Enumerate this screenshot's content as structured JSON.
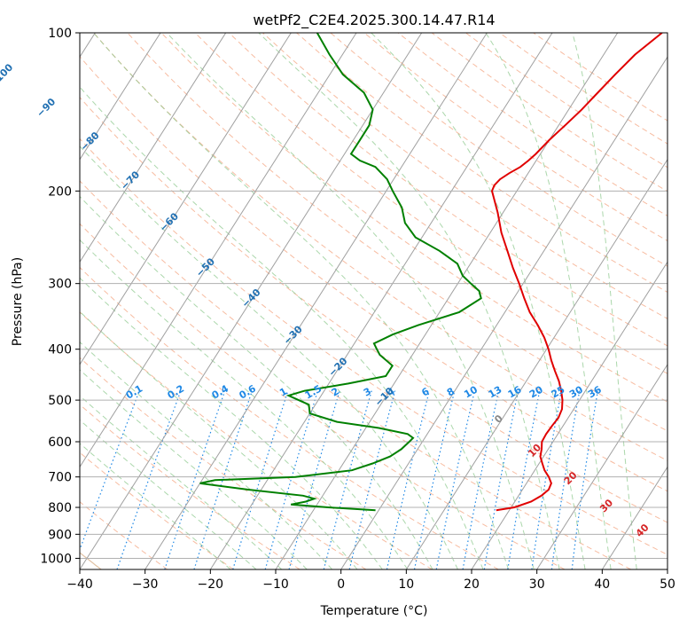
{
  "chart_data": {
    "type": "line",
    "subtype": "skew-t log-p diagram",
    "title": "wetPf2_C2E4.2025.300.14.47.R14",
    "xlabel": "Temperature (°C)",
    "ylabel": "Pressure (hPa)",
    "xlim": [
      -40,
      50
    ],
    "ylim": [
      1050,
      100
    ],
    "y_scale": "log",
    "grid": true,
    "x_ticks": [
      "−40",
      "−30",
      "−20",
      "−10",
      "0",
      "10",
      "20",
      "30",
      "40",
      "50"
    ],
    "y_ticks": [
      "100",
      "200",
      "300",
      "400",
      "500",
      "600",
      "700",
      "800",
      "900",
      "1000"
    ],
    "series": [
      {
        "role": "temperature",
        "color": "#e00000",
        "points": [
          [
            810,
            18.0
          ],
          [
            800,
            20.5
          ],
          [
            780,
            22.5
          ],
          [
            760,
            23.5
          ],
          [
            740,
            24.0
          ],
          [
            720,
            23.8
          ],
          [
            700,
            22.8
          ],
          [
            680,
            21.5
          ],
          [
            660,
            20.5
          ],
          [
            640,
            19.5
          ],
          [
            620,
            19.0
          ],
          [
            600,
            18.3
          ],
          [
            580,
            18.2
          ],
          [
            560,
            18.3
          ],
          [
            540,
            18.5
          ],
          [
            520,
            18.2
          ],
          [
            500,
            17.4
          ],
          [
            480,
            16.3
          ],
          [
            460,
            15.0
          ],
          [
            440,
            13.4
          ],
          [
            420,
            11.8
          ],
          [
            400,
            10.3
          ],
          [
            380,
            8.5
          ],
          [
            360,
            6.3
          ],
          [
            340,
            3.8
          ],
          [
            320,
            1.6
          ],
          [
            300,
            -0.6
          ],
          [
            280,
            -3.1
          ],
          [
            260,
            -5.6
          ],
          [
            240,
            -8.3
          ],
          [
            220,
            -10.8
          ],
          [
            200,
            -13.8
          ],
          [
            195,
            -14.0
          ],
          [
            190,
            -13.7
          ],
          [
            185,
            -12.9
          ],
          [
            180,
            -11.8
          ],
          [
            175,
            -11.2
          ],
          [
            170,
            -10.7
          ],
          [
            160,
            -10.0
          ],
          [
            150,
            -9.0
          ],
          [
            140,
            -8.0
          ],
          [
            130,
            -7.2
          ],
          [
            120,
            -6.3
          ],
          [
            110,
            -5.2
          ],
          [
            100,
            -3.2
          ]
        ]
      },
      {
        "role": "dewpoint",
        "color": "#008000",
        "points": [
          [
            810,
            -0.5
          ],
          [
            800,
            -8.0
          ],
          [
            790,
            -14.0
          ],
          [
            780,
            -12.0
          ],
          [
            770,
            -11.0
          ],
          [
            760,
            -13.0
          ],
          [
            740,
            -22.0
          ],
          [
            720,
            -30.0
          ],
          [
            710,
            -28.0
          ],
          [
            700,
            -16.0
          ],
          [
            680,
            -8.0
          ],
          [
            660,
            -5.5
          ],
          [
            640,
            -3.5
          ],
          [
            620,
            -2.5
          ],
          [
            600,
            -2.0
          ],
          [
            590,
            -1.8
          ],
          [
            580,
            -3.0
          ],
          [
            565,
            -8.0
          ],
          [
            550,
            -15.0
          ],
          [
            530,
            -20.0
          ],
          [
            510,
            -21.0
          ],
          [
            500,
            -23.0
          ],
          [
            490,
            -25.0
          ],
          [
            480,
            -23.0
          ],
          [
            465,
            -17.0
          ],
          [
            450,
            -12.0
          ],
          [
            430,
            -12.0
          ],
          [
            410,
            -15.0
          ],
          [
            400,
            -16.0
          ],
          [
            390,
            -17.0
          ],
          [
            375,
            -15.0
          ],
          [
            360,
            -12.0
          ],
          [
            340,
            -7.0
          ],
          [
            320,
            -5.0
          ],
          [
            310,
            -6.0
          ],
          [
            300,
            -8.0
          ],
          [
            290,
            -10.0
          ],
          [
            275,
            -12.0
          ],
          [
            260,
            -16.0
          ],
          [
            245,
            -21.0
          ],
          [
            230,
            -24.0
          ],
          [
            215,
            -26.0
          ],
          [
            200,
            -29.0
          ],
          [
            190,
            -31.0
          ],
          [
            180,
            -34.0
          ],
          [
            175,
            -37.0
          ],
          [
            170,
            -39.0
          ],
          [
            160,
            -39.0
          ],
          [
            150,
            -39.0
          ],
          [
            140,
            -40.0
          ],
          [
            130,
            -43.0
          ],
          [
            120,
            -48.0
          ],
          [
            110,
            -52.0
          ],
          [
            100,
            -56.0
          ]
        ]
      }
    ],
    "mixing_ratio_labels": [
      "0.1",
      "0.2",
      "0.4",
      "0.6",
      "1",
      "1.5",
      "2",
      "3",
      "4",
      "6",
      "8",
      "10",
      "13",
      "16",
      "20",
      "25",
      "30",
      "36"
    ],
    "mixing_ratio_values": [
      0.1,
      0.2,
      0.4,
      0.6,
      1,
      1.5,
      2,
      3,
      4,
      6,
      8,
      10,
      13,
      16,
      20,
      25,
      30,
      36
    ],
    "isotherm_labels": [
      "−100",
      "−90",
      "−80",
      "−70",
      "−60",
      "−50",
      "−40",
      "−30",
      "−20",
      "−10"
    ],
    "isotherm_label_values": [
      -100,
      -90,
      -80,
      -70,
      -60,
      -50,
      -40,
      -30,
      -20,
      -10
    ],
    "moist_adiabat_labels": [
      "0",
      "10",
      "20",
      "30",
      "40"
    ],
    "moist_adiabat_label_values": [
      0,
      10,
      20,
      30,
      40
    ],
    "colors": {
      "isotherm": "#a0a0a0",
      "isotherm_label": "#2271b3",
      "dry_adiabat": "#f4a582",
      "moist_adiabat": "#8fc98f",
      "mixing_ratio": "#1e88e5",
      "moist_label_zero": "#888888",
      "moist_label": "#d62728",
      "tan_curve": "#d9b48f"
    }
  }
}
